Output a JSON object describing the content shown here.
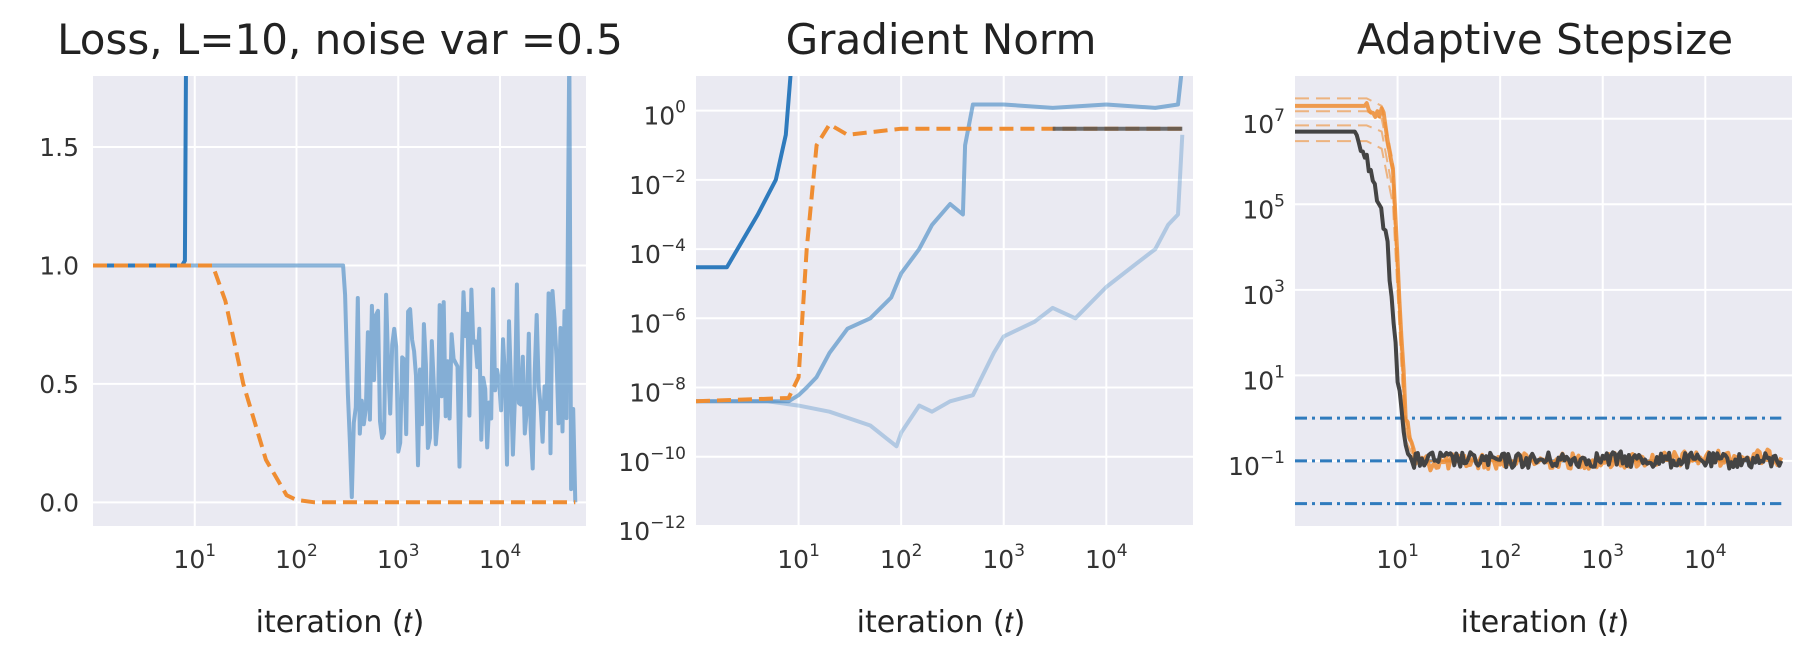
{
  "chart_data": [
    {
      "type": "line",
      "title": "Loss, L=10, noise var =0.5",
      "xlabel": "iteration (𝑡)",
      "ylabel": "",
      "xscale": "log",
      "yscale": "linear",
      "xlim": [
        1,
        70000
      ],
      "ylim": [
        -0.1,
        1.8
      ],
      "grid": true,
      "yticks": [
        0.0,
        0.5,
        1.0,
        1.5
      ],
      "ytick_labels": [
        "0.0",
        "0.5",
        "1.0",
        "1.5"
      ],
      "xticks": [
        10,
        100,
        1000,
        10000
      ],
      "xtick_labels": [
        {
          "base": "10",
          "exp": "1"
        },
        {
          "base": "10",
          "exp": "2"
        },
        {
          "base": "10",
          "exp": "3"
        },
        {
          "base": "10",
          "exp": "4"
        }
      ],
      "series": [
        {
          "color": "#2f7bbd",
          "alpha": 1.0,
          "dash": "solid",
          "x": [
            1,
            7.5,
            8,
            8.2
          ],
          "y": [
            1.0,
            1.0,
            1.02,
            1.85
          ]
        },
        {
          "color": "#2f7bbd",
          "alpha": 0.55,
          "dash": "solid",
          "noisy": true,
          "x": [
            1,
            300,
            320,
            400,
            1000,
            5000,
            30000,
            45000,
            48000,
            50000,
            55000
          ],
          "y": [
            1.0,
            1.0,
            0.3,
            0.6,
            0.55,
            0.5,
            0.55,
            0.6,
            1.85,
            0.0,
            0.0
          ]
        },
        {
          "color": "#ef8d32",
          "alpha": 1.0,
          "dash": "dashed",
          "x": [
            1,
            15,
            20,
            30,
            50,
            80,
            100,
            150,
            1000,
            55000
          ],
          "y": [
            1.0,
            1.0,
            0.85,
            0.5,
            0.18,
            0.03,
            0.01,
            0.0,
            0.0,
            0.0
          ]
        }
      ]
    },
    {
      "type": "line",
      "title": "Gradient Norm",
      "xlabel": "iteration (𝑡)",
      "ylabel": "",
      "xscale": "log",
      "yscale": "log",
      "xlim": [
        1,
        70000
      ],
      "ylim": [
        1e-12,
        10
      ],
      "grid": true,
      "yticks": [
        1e-12,
        1e-10,
        1e-08,
        1e-06,
        0.0001,
        0.01,
        1
      ],
      "ytick_labels": [
        {
          "base": "10",
          "exp": "−12"
        },
        {
          "base": "10",
          "exp": "−10"
        },
        {
          "base": "10",
          "exp": "−8"
        },
        {
          "base": "10",
          "exp": "−6"
        },
        {
          "base": "10",
          "exp": "−4"
        },
        {
          "base": "10",
          "exp": "−2"
        },
        {
          "base": "10",
          "exp": "0"
        }
      ],
      "xticks": [
        10,
        100,
        1000,
        10000
      ],
      "xtick_labels": [
        {
          "base": "10",
          "exp": "1"
        },
        {
          "base": "10",
          "exp": "2"
        },
        {
          "base": "10",
          "exp": "3"
        },
        {
          "base": "10",
          "exp": "4"
        }
      ],
      "series": [
        {
          "color": "#2f7bbd",
          "alpha": 1.0,
          "dash": "solid",
          "x": [
            1,
            2,
            4,
            6,
            7.5,
            8.5
          ],
          "y": [
            3e-05,
            3e-05,
            0.001,
            0.01,
            0.2,
            20
          ]
        },
        {
          "color": "#2f7bbd",
          "alpha": 0.55,
          "dash": "solid",
          "x": [
            1,
            8,
            10,
            12,
            15,
            20,
            30,
            50,
            80,
            100,
            150,
            200,
            300,
            400,
            420,
            500,
            600,
            1000,
            3000,
            10000,
            30000,
            50000,
            55000
          ],
          "y": [
            4e-09,
            4e-09,
            6e-09,
            1e-08,
            2e-08,
            1e-07,
            5e-07,
            1e-06,
            4e-06,
            2e-05,
            0.0001,
            0.0005,
            0.002,
            0.001,
            0.1,
            1.5,
            1.5,
            1.5,
            1.2,
            1.5,
            1.2,
            1.5,
            20
          ]
        },
        {
          "color": "#2f7bbd",
          "alpha": 0.3,
          "dash": "solid",
          "x": [
            1,
            5,
            10,
            20,
            50,
            90,
            100,
            150,
            200,
            300,
            500,
            800,
            1000,
            2000,
            3000,
            5000,
            10000,
            20000,
            30000,
            40000,
            50000,
            55000
          ],
          "y": [
            4e-09,
            4e-09,
            3e-09,
            2e-09,
            8e-10,
            2e-10,
            5e-10,
            3e-09,
            2e-09,
            4e-09,
            6e-09,
            1e-07,
            3e-07,
            8e-07,
            2e-06,
            1e-06,
            8e-06,
            4e-05,
            0.0001,
            0.0005,
            0.001,
            0.2
          ]
        },
        {
          "color": "#ef8d32",
          "alpha": 1.0,
          "dash": "dashed",
          "x": [
            1,
            8,
            10,
            12,
            15,
            20,
            30,
            100,
            55000
          ],
          "y": [
            4e-09,
            5e-09,
            2e-08,
            0.0001,
            0.1,
            0.4,
            0.2,
            0.3,
            0.3
          ]
        },
        {
          "color": "#555555",
          "alpha": 0.85,
          "dash": "solid",
          "x": [
            3000,
            55000
          ],
          "y": [
            0.3,
            0.3
          ]
        }
      ]
    },
    {
      "type": "line",
      "title": "Adaptive Stepsize",
      "xlabel": "iteration (𝑡)",
      "ylabel": "",
      "xscale": "log",
      "yscale": "log",
      "xlim": [
        1,
        70000
      ],
      "ylim": [
        0.003,
        100000000
      ],
      "grid": true,
      "yticks": [
        0.1,
        10,
        1000,
        100000,
        10000000
      ],
      "ytick_labels": [
        {
          "base": "10",
          "exp": "−1"
        },
        {
          "base": "10",
          "exp": "1"
        },
        {
          "base": "10",
          "exp": "3"
        },
        {
          "base": "10",
          "exp": "5"
        },
        {
          "base": "10",
          "exp": "7"
        }
      ],
      "xticks": [
        10,
        100,
        1000,
        10000
      ],
      "xtick_labels": [
        {
          "base": "10",
          "exp": "1"
        },
        {
          "base": "10",
          "exp": "2"
        },
        {
          "base": "10",
          "exp": "3"
        },
        {
          "base": "10",
          "exp": "4"
        }
      ],
      "series": [
        {
          "color": "#2f7bbd",
          "alpha": 1.0,
          "dash": "dashdot",
          "x": [
            1,
            55000
          ],
          "y": [
            1,
            1
          ]
        },
        {
          "color": "#2f7bbd",
          "alpha": 1.0,
          "dash": "dashdot",
          "x": [
            1,
            55000
          ],
          "y": [
            0.1,
            0.1
          ]
        },
        {
          "color": "#2f7bbd",
          "alpha": 1.0,
          "dash": "dashdot",
          "x": [
            1,
            55000
          ],
          "y": [
            0.01,
            0.01
          ]
        },
        {
          "color": "#ef8d32",
          "alpha": 0.6,
          "dash": "dashed",
          "x": [
            1,
            5,
            7,
            9,
            12,
            15,
            20,
            100,
            1000,
            10000,
            55000
          ],
          "y": [
            30000000.0,
            30000000.0,
            20000000.0,
            1000000.0,
            1,
            0.12,
            0.1,
            0.1,
            0.1,
            0.1,
            0.1
          ]
        },
        {
          "color": "#ef8d32",
          "alpha": 0.6,
          "dash": "dashed",
          "x": [
            1,
            5,
            7,
            9,
            12,
            15,
            20,
            100,
            1000,
            10000,
            55000
          ],
          "y": [
            15000000.0,
            15000000.0,
            10000000.0,
            500000.0,
            0.5,
            0.11,
            0.1,
            0.1,
            0.1,
            0.1,
            0.1
          ]
        },
        {
          "color": "#ef8d32",
          "alpha": 0.6,
          "dash": "dashed",
          "x": [
            1,
            5,
            7,
            9,
            12,
            15,
            20,
            100,
            1000,
            10000,
            55000
          ],
          "y": [
            7000000.0,
            7000000.0,
            5000000.0,
            200000.0,
            0.3,
            0.1,
            0.1,
            0.1,
            0.1,
            0.1,
            0.1
          ]
        },
        {
          "color": "#ef8d32",
          "alpha": 0.6,
          "dash": "dashed",
          "x": [
            1,
            5,
            7,
            9,
            12,
            15,
            20,
            100,
            1000,
            10000,
            55000
          ],
          "y": [
            3000000.0,
            3000000.0,
            2000000.0,
            100000.0,
            0.2,
            0.1,
            0.1,
            0.1,
            0.1,
            0.1,
            0.1
          ]
        },
        {
          "color": "#ef8d32",
          "alpha": 0.85,
          "dash": "solid",
          "noisy": true,
          "x": [
            1,
            5,
            7,
            9,
            12,
            15,
            20,
            100,
            1000,
            5000,
            20000,
            55000
          ],
          "y": [
            20000000.0,
            20000000.0,
            15000000.0,
            800000.0,
            1,
            0.1,
            0.09,
            0.1,
            0.1,
            0.11,
            0.12,
            0.12
          ]
        },
        {
          "color": "#444444",
          "alpha": 1.0,
          "dash": "solid",
          "noisy": true,
          "x": [
            1,
            4,
            6,
            8,
            10,
            12,
            14,
            15,
            20,
            100,
            1000,
            10000,
            55000
          ],
          "y": [
            5000000.0,
            5000000.0,
            300000.0,
            10000.0,
            10,
            0.3,
            0.07,
            0.1,
            0.11,
            0.1,
            0.11,
            0.1,
            0.1
          ]
        }
      ]
    }
  ]
}
